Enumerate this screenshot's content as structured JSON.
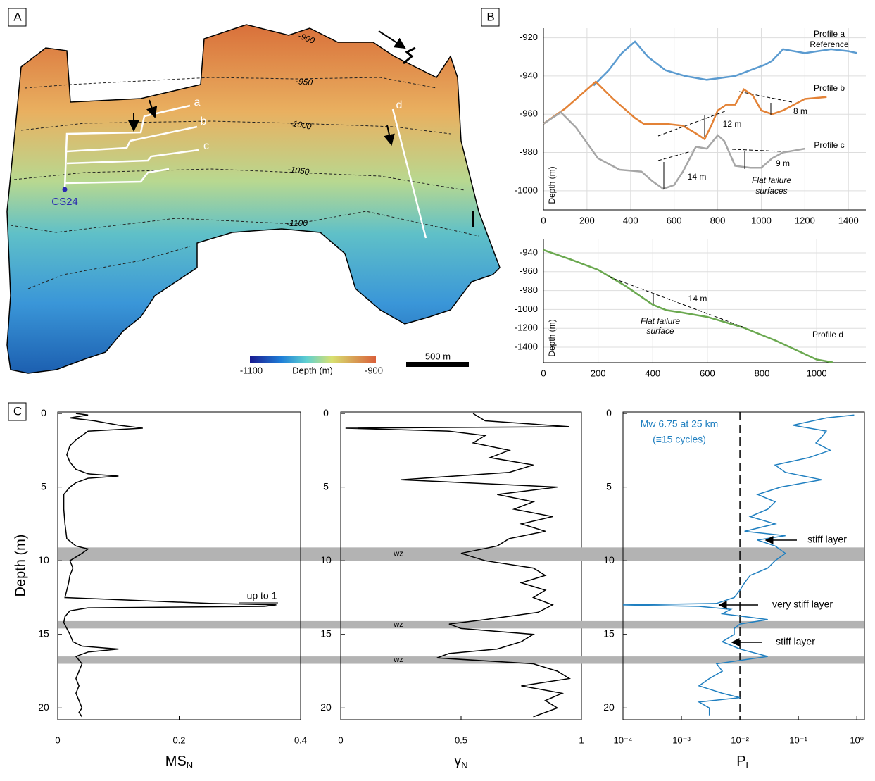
{
  "panel_labels": [
    "A",
    "B",
    "C"
  ],
  "map": {
    "contour_labels": [
      -900,
      -950,
      -1000,
      -1050,
      -1100
    ],
    "profile_letters": [
      "a",
      "b",
      "c",
      "d"
    ],
    "core": "CS24",
    "colorbar": {
      "min": -1100,
      "max": -900,
      "label": "Depth (m)"
    },
    "scale_bar": "500 m"
  },
  "chart_data": [
    {
      "type": "line",
      "xlim": [
        0,
        1480
      ],
      "ylim": [
        -1010,
        -915
      ],
      "xticks": [
        0,
        200,
        400,
        600,
        800,
        1000,
        1200,
        1400
      ],
      "yticks": [
        -920,
        -940,
        -960,
        -980,
        -1000
      ],
      "ylabel": "Depth (m)",
      "grid": true,
      "series": [
        {
          "name": "Profile a",
          "color": "#5b9bd0",
          "x": [
            230,
            300,
            360,
            420,
            480,
            560,
            650,
            750,
            880,
            950,
            1020,
            1050,
            1100,
            1200,
            1320,
            1400,
            1440
          ],
          "values": [
            -945,
            -937,
            -928,
            -922,
            -930,
            -937,
            -940,
            -942,
            -940,
            -937,
            -934,
            -932,
            -926,
            -928,
            -926,
            -927,
            -928
          ]
        },
        {
          "name": "Profile b",
          "color": "#e38236",
          "x": [
            0,
            100,
            240,
            320,
            420,
            460,
            560,
            640,
            700,
            740,
            770,
            800,
            840,
            880,
            920,
            960,
            1000,
            1050,
            1100,
            1150,
            1200,
            1300
          ],
          "values": [
            -965,
            -957,
            -943,
            -952,
            -962,
            -965,
            -965,
            -966,
            -970,
            -973,
            -966,
            -958,
            -955,
            -955,
            -947,
            -950,
            -958,
            -960,
            -958,
            -955,
            -952,
            -951
          ]
        },
        {
          "name": "Profile c",
          "color": "#a6a6a6",
          "x": [
            0,
            80,
            150,
            250,
            350,
            450,
            500,
            550,
            600,
            640,
            700,
            750,
            800,
            830,
            880,
            950,
            1000,
            1050,
            1100,
            1150,
            1200
          ],
          "values": [
            -965,
            -959,
            -967,
            -983,
            -989,
            -990,
            -995,
            -999,
            -997,
            -990,
            -977,
            -978,
            -971,
            -974,
            -987,
            -988,
            -988,
            -983,
            -980,
            -979,
            -978
          ]
        }
      ],
      "annotations": [
        "Reference",
        "12 m",
        "8 m",
        "14 m",
        "9 m",
        "Flat failure",
        "surfaces"
      ]
    },
    {
      "type": "line",
      "xlim": [
        0,
        1180
      ],
      "ylim": [
        -926,
        -1563
      ],
      "xticks": [
        0,
        200,
        400,
        600,
        800,
        1000
      ],
      "yticks": [
        -940,
        -960,
        -980,
        -1000,
        -1200,
        -1400
      ],
      "ylabel": "Depth (m)",
      "grid": true,
      "series": [
        {
          "name": "Profile d",
          "color": "#6aa84f",
          "x": [
            0,
            100,
            200,
            300,
            400,
            450,
            500,
            600,
            730,
            850,
            1000,
            1060
          ],
          "values": [
            -937,
            -947,
            -958,
            -975,
            -995,
            -1008,
            -1030,
            -1080,
            -1190,
            -1330,
            -1530,
            -1560
          ]
        }
      ],
      "annotations": [
        "14 m",
        "Flat failure",
        "surface"
      ]
    },
    {
      "type": "profile",
      "color": "#000000",
      "xlim": [
        0,
        0.4
      ],
      "ylim": [
        -0.1,
        20.8
      ],
      "xticks": [
        0,
        0.2,
        0.4
      ],
      "yticks": [
        0,
        5,
        10,
        15,
        20
      ],
      "ylabel": "Depth (m)",
      "xlabel": {
        "text": "MS",
        "sub": "N"
      },
      "bands": [
        [
          9.1,
          10
        ],
        [
          14.1,
          14.6
        ],
        [
          16.5,
          17
        ]
      ],
      "depth": [
        0,
        0.1,
        0.3,
        0.5,
        0.8,
        1.0,
        1.2,
        1.5,
        1.8,
        2.2,
        2.8,
        3.3,
        3.8,
        4.1,
        4.25,
        4.4,
        4.7,
        5.0,
        5.5,
        6.5,
        7.5,
        8.5,
        9.0,
        9.2,
        9.5,
        10,
        10.5,
        11,
        11.5,
        12,
        12.5,
        12.9,
        13.0,
        13.1,
        13.2,
        13.4,
        13.8,
        14.2,
        14.6,
        15.0,
        15.5,
        15.8,
        16.0,
        16.2,
        16.5,
        17,
        17.5,
        18,
        18.5,
        19,
        19.5,
        20,
        20.3,
        20.6
      ],
      "values": [
        0.03,
        0.05,
        0.02,
        0.06,
        0.1,
        0.14,
        0.05,
        0.04,
        0.03,
        0.02,
        0.015,
        0.02,
        0.03,
        0.05,
        0.1,
        0.05,
        0.03,
        0.02,
        0.01,
        0.01,
        0.012,
        0.015,
        0.03,
        0.05,
        0.04,
        0.02,
        0.025,
        0.02,
        0.018,
        0.015,
        0.012,
        0.25,
        0.36,
        0.34,
        0.05,
        0.02,
        0.012,
        0.01,
        0.015,
        0.02,
        0.025,
        0.04,
        0.1,
        0.05,
        0.03,
        0.04,
        0.035,
        0.03,
        0.035,
        0.03,
        0.035,
        0.04,
        0.035,
        0.04
      ],
      "annotations": [
        "up to 1"
      ]
    },
    {
      "type": "profile",
      "color": "#000000",
      "xlim": [
        0,
        1
      ],
      "ylim": [
        -0.1,
        20.8
      ],
      "xticks": [
        0,
        0.5,
        1
      ],
      "yticks": [
        0,
        5,
        10,
        15,
        20
      ],
      "xlabel": {
        "text": "γ",
        "sub": "N"
      },
      "bands": [
        [
          9.1,
          10
        ],
        [
          14.1,
          14.6
        ],
        [
          16.5,
          17
        ]
      ],
      "band_labels": [
        "wz",
        "wz",
        "wz"
      ],
      "depth": [
        0,
        0.5,
        0.9,
        1.0,
        1.2,
        1.5,
        2,
        2.5,
        3,
        3.5,
        4,
        4.5,
        5,
        5.5,
        6,
        6.5,
        7,
        7.5,
        8,
        8.5,
        9,
        9.5,
        10,
        10.5,
        11,
        11.5,
        12,
        12.5,
        13,
        13.5,
        14,
        14.3,
        14.6,
        15,
        15.5,
        16,
        16.3,
        16.6,
        17,
        17.5,
        18,
        18.5,
        19,
        19.5,
        20,
        20.6
      ],
      "values": [
        0.55,
        0.6,
        0.95,
        0.02,
        0.45,
        0.6,
        0.55,
        0.7,
        0.62,
        0.8,
        0.7,
        0.25,
        0.9,
        0.65,
        0.8,
        0.72,
        0.88,
        0.75,
        0.85,
        0.7,
        0.65,
        0.5,
        0.6,
        0.8,
        0.85,
        0.75,
        0.85,
        0.8,
        0.88,
        0.82,
        0.6,
        0.45,
        0.5,
        0.8,
        0.75,
        0.65,
        0.45,
        0.4,
        0.8,
        0.9,
        0.95,
        0.75,
        0.92,
        0.85,
        0.9,
        0.8
      ]
    },
    {
      "type": "profile",
      "color": "#1f7fc0",
      "log_x": true,
      "xlim": [
        0.0001,
        1.35
      ],
      "ylim": [
        -0.1,
        20.8
      ],
      "xticks": [
        {
          "value": 0.0001,
          "label": "10⁻⁴"
        },
        {
          "value": 0.001,
          "label": "10⁻³"
        },
        {
          "value": 0.01,
          "label": "10⁻²"
        },
        {
          "value": 0.1,
          "label": "10⁻¹"
        },
        {
          "value": 1,
          "label": "10⁰"
        }
      ],
      "yticks": [
        0,
        5,
        10,
        15,
        20
      ],
      "xlabel": {
        "text": "P",
        "sub": "L"
      },
      "threshold": 0.01,
      "bands": [
        [
          9.1,
          10
        ],
        [
          14.1,
          14.6
        ],
        [
          16.5,
          17
        ]
      ],
      "depth": [
        0.1,
        0.3,
        0.8,
        1.2,
        1.6,
        2,
        2.5,
        3,
        3.5,
        4,
        4.5,
        5,
        5.5,
        6,
        6.5,
        7,
        7.5,
        8,
        8.3,
        8.6,
        9,
        9.5,
        10,
        10.5,
        11,
        11.5,
        12,
        12.5,
        12.9,
        13.0,
        13.1,
        13.3,
        13.6,
        14,
        14.3,
        14.6,
        15,
        15.5,
        16,
        16.5,
        17,
        17.5,
        18,
        18.5,
        19,
        19.3,
        19.6,
        20,
        20.5
      ],
      "values": [
        0.9,
        0.3,
        0.08,
        0.3,
        0.25,
        0.2,
        0.35,
        0.15,
        0.04,
        0.06,
        0.25,
        0.05,
        0.02,
        0.04,
        0.03,
        0.015,
        0.04,
        0.012,
        0.06,
        0.02,
        0.04,
        0.06,
        0.04,
        0.03,
        0.015,
        0.012,
        0.01,
        0.008,
        0.004,
        0.0001,
        0.002,
        0.007,
        0.005,
        0.03,
        0.01,
        0.008,
        0.008,
        0.005,
        0.01,
        0.03,
        0.004,
        0.005,
        0.003,
        0.002,
        0.005,
        0.01,
        0.002,
        0.003,
        0.003
      ],
      "annotations": [
        "Mw 6.75 at 25 km",
        "(≡15 cycles)",
        "stiff layer",
        "very stiff layer",
        "stiff layer"
      ]
    }
  ]
}
